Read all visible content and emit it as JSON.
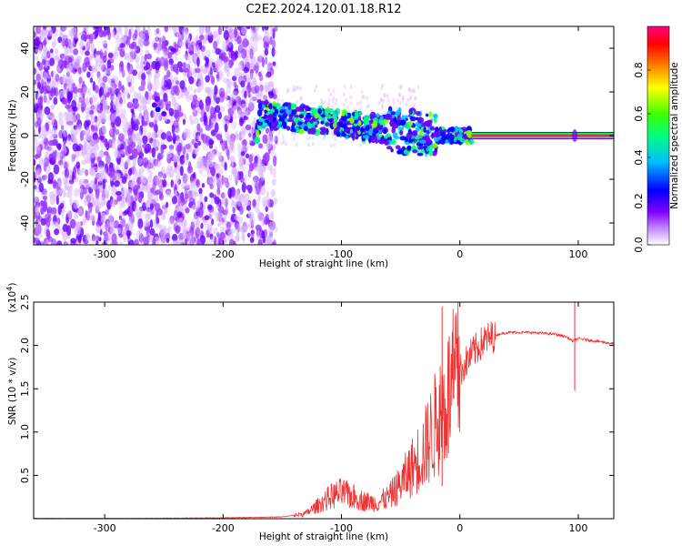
{
  "title": "C2E2.2024.120.01.18.R12",
  "chart_data": [
    {
      "type": "heatmap",
      "xlabel": "Height of straight line (km)",
      "ylabel": "Frequency (Hz)",
      "xlim": [
        -360,
        130
      ],
      "ylim": [
        -50,
        50
      ],
      "x_ticks": [
        -300,
        -200,
        -100,
        0,
        100
      ],
      "y_ticks": [
        -40,
        -20,
        0,
        20,
        40
      ],
      "grid": false,
      "colorbar": {
        "label": "Normalized spectral amplitude",
        "range": [
          0,
          1
        ],
        "ticks": [
          "0.0",
          "0.2",
          "0.4",
          "0.6",
          "0.8"
        ],
        "colormap": [
          "#ffffff",
          "#8000ff",
          "#0000ff",
          "#00c0ff",
          "#00ff00",
          "#ffff00",
          "#ff8000",
          "#ff0000",
          "#ff0080"
        ]
      },
      "regions": [
        {
          "x_range": [
            -360,
            -155
          ],
          "freq_range": [
            -50,
            50
          ],
          "amplitude": "low (noise)"
        },
        {
          "x_range": [
            -170,
            10
          ],
          "freq_trend": [
            [
              -170,
              10
            ],
            [
              -20,
              0
            ],
            [
              5,
              0
            ]
          ],
          "amplitude": "medium-high"
        },
        {
          "x_range": [
            10,
            130
          ],
          "freq": 0,
          "amplitude": 1.0
        }
      ]
    },
    {
      "type": "line",
      "xlabel": "Height of straight line (km)",
      "ylabel": "SNR (10 * v/v)",
      "scale_label": "(x10^4)",
      "scale_prefix": "(x10",
      "scale_exp": "4",
      "scale_suffix": ")",
      "xlim": [
        -360,
        130
      ],
      "ylim": [
        0,
        2.5
      ],
      "x_ticks": [
        -300,
        -200,
        -100,
        0,
        100
      ],
      "y_ticks": [
        "0.5",
        "1.0",
        "1.5",
        "2.0",
        "2.5"
      ],
      "color": "#ee3333",
      "series": [
        {
          "x": [
            -360,
            -300,
            -200,
            -150,
            -130,
            -120,
            -110,
            -100,
            -90,
            -80,
            -70,
            -60,
            -50,
            -40,
            -30,
            -20,
            -10,
            0,
            10,
            20,
            30,
            40,
            60,
            80,
            90,
            95,
            100,
            110,
            130
          ],
          "y": [
            0.0,
            0.0,
            0.01,
            0.02,
            0.06,
            0.15,
            0.25,
            0.3,
            0.25,
            0.2,
            0.18,
            0.25,
            0.4,
            0.6,
            0.8,
            1.1,
            1.4,
            1.7,
            1.9,
            2.05,
            2.12,
            2.15,
            2.15,
            2.13,
            2.1,
            2.05,
            2.08,
            2.06,
            2.02
          ]
        }
      ],
      "spikes": [
        {
          "x": -15,
          "y_max": 2.45
        },
        {
          "x": 97,
          "y_max": 2.5,
          "y_min": 1.48
        }
      ]
    }
  ]
}
